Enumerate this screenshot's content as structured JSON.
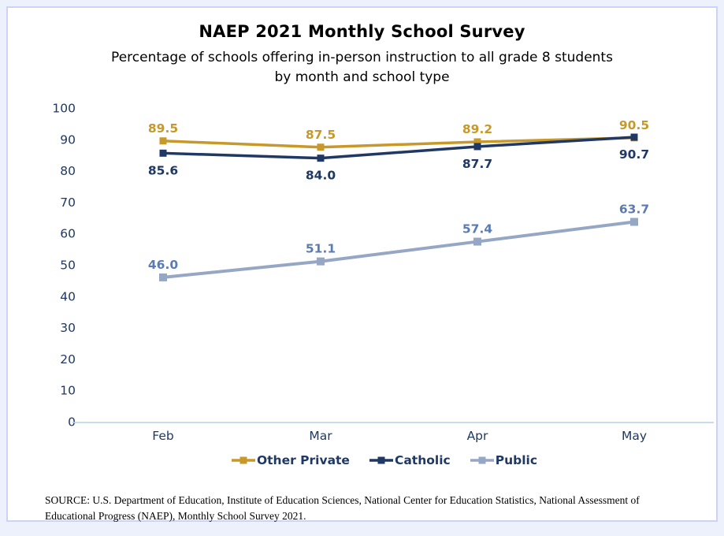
{
  "header": {
    "title": "NAEP 2021 Monthly School Survey",
    "subtitle_lines": [
      "Percentage of schools offering in-person instruction to all grade 8 students",
      "by month and school type"
    ]
  },
  "chart_data": {
    "type": "line",
    "title": "NAEP 2021 Monthly School Survey",
    "subtitle": "Percentage of schools offering in-person instruction to all grade 8 students by month and school type",
    "categories": [
      "Feb",
      "Mar",
      "Apr",
      "May"
    ],
    "series": [
      {
        "name": "Other Private",
        "values": [
          89.5,
          87.5,
          89.2,
          90.5
        ],
        "color": "#C7992B",
        "label_color": "#C7992B",
        "label_position": "above",
        "line_width": 3.5,
        "marker_size": 9
      },
      {
        "name": "Catholic",
        "values": [
          85.6,
          84.0,
          87.7,
          90.7
        ],
        "color": "#1F3864",
        "label_color": "#1F3864",
        "label_position": "below",
        "line_width": 3.5,
        "marker_size": 9
      },
      {
        "name": "Public",
        "values": [
          46.0,
          51.1,
          57.4,
          63.7
        ],
        "color": "#96A7C6",
        "label_color": "#5B7BB4",
        "label_position": "above",
        "line_width": 4,
        "marker_size": 10
      }
    ],
    "xlabel": "",
    "ylabel": "",
    "ylim": [
      0,
      100
    ],
    "yticks": [
      0,
      10,
      20,
      30,
      40,
      50,
      60,
      70,
      80,
      90,
      100
    ],
    "grid": false,
    "legend_position": "bottom",
    "axis_color": "#B9CDED",
    "tick_label_color": "#1F3864",
    "value_label_decimals": 1
  },
  "source": {
    "lines": [
      "SOURCE: U.S. Department of Education, Institute of Education Sciences, National Center for Education Statistics, National Assessment of",
      "Educational Progress (NAEP), Monthly School Survey 2021."
    ]
  }
}
